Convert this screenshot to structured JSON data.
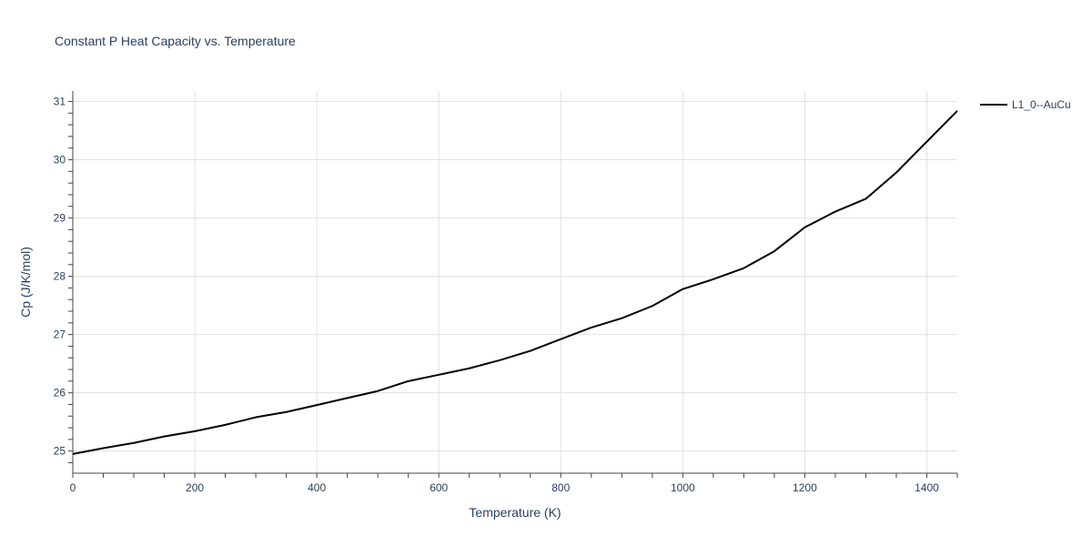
{
  "chart_data": {
    "type": "line",
    "title": "Constant P Heat Capacity vs. Temperature",
    "xlabel": "Temperature (K)",
    "ylabel": "Cp (J/K/mol)",
    "xlim": [
      0,
      1450
    ],
    "ylim": [
      24.62,
      31.18
    ],
    "xticks": [
      0,
      200,
      400,
      600,
      800,
      1000,
      1200,
      1400
    ],
    "yticks": [
      25,
      26,
      27,
      28,
      29,
      30,
      31
    ],
    "grid": true,
    "legend_position": "top-right",
    "series": [
      {
        "name": "L1_0--AuCu",
        "color": "#000000",
        "x": [
          0,
          50,
          100,
          150,
          200,
          250,
          300,
          350,
          400,
          450,
          500,
          550,
          600,
          650,
          700,
          750,
          800,
          850,
          900,
          950,
          1000,
          1050,
          1100,
          1150,
          1200,
          1250,
          1300,
          1350,
          1400,
          1450
        ],
        "y": [
          24.95,
          25.05,
          25.14,
          25.25,
          25.34,
          25.45,
          25.58,
          25.67,
          25.79,
          25.91,
          26.03,
          26.2,
          26.31,
          26.42,
          26.56,
          26.72,
          26.92,
          27.12,
          27.28,
          27.49,
          27.78,
          27.95,
          28.14,
          28.43,
          28.84,
          29.11,
          29.33,
          29.78,
          30.31,
          30.84
        ]
      }
    ]
  }
}
